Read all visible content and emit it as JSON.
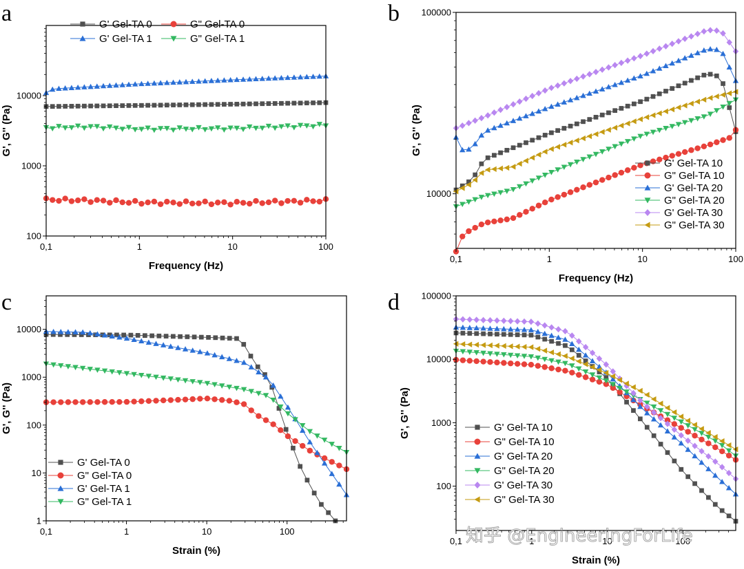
{
  "figure": {
    "colors": {
      "G' Gel-TA 0": "#505050",
      "G\" Gel-TA 0": "#e8413a",
      "G' Gel-TA 1": "#2a6fd6",
      "G\" Gel-TA 1": "#33b861",
      "G' Gel-TA 10": "#505050",
      "G\" Gel-TA 10": "#e8413a",
      "G' Gel-TA 20": "#2a6fd6",
      "G\" Gel-TA 20": "#33b861",
      "G' Gel-TA 30": "#b987f0",
      "G\" Gel-TA 30": "#c59b12"
    },
    "watermark": "知乎 @EngineeringForLife"
  },
  "chart_data": [
    {
      "id": "a",
      "panel_label": "a",
      "type": "scatter-line",
      "xlabel": "Frequency (Hz)",
      "ylabel": "G', G'' (Pa)",
      "xscale": "log",
      "yscale": "log",
      "xlim": [
        0.1,
        100
      ],
      "ylim": [
        100,
        100000
      ],
      "xticks": [
        {
          "v": 0.1,
          "t": "0,1"
        },
        {
          "v": 1,
          "t": "1"
        },
        {
          "v": 10,
          "t": "10"
        },
        {
          "v": 100,
          "t": "100"
        }
      ],
      "yticks": [
        {
          "v": 100,
          "t": "100"
        },
        {
          "v": 1000,
          "t": "1000"
        },
        {
          "v": 10000,
          "t": "10000"
        }
      ],
      "legend_pos": "top-two-column",
      "series": [
        {
          "name": "G' Gel-TA 0",
          "marker": "square",
          "x0": 0.1,
          "x1": 100,
          "n": 45,
          "anchors": [
            [
              0.1,
              7000
            ],
            [
              1,
              7250
            ],
            [
              10,
              7550
            ],
            [
              100,
              7950
            ]
          ]
        },
        {
          "name": "G\" Gel-TA 0",
          "marker": "circle",
          "x0": 0.1,
          "x1": 100,
          "n": 45,
          "anchors": [
            [
              0.1,
              330
            ],
            [
              0.3,
              320
            ],
            [
              1,
              300
            ],
            [
              10,
              295
            ],
            [
              100,
              320
            ]
          ],
          "jitter": 0.05
        },
        {
          "name": "G' Gel-TA 1",
          "marker": "triangle-up",
          "x0": 0.1,
          "x1": 100,
          "n": 45,
          "anchors": [
            [
              0.1,
              11000
            ],
            [
              0.12,
              12500
            ],
            [
              1,
              14700
            ],
            [
              10,
              16800
            ],
            [
              100,
              19000
            ]
          ]
        },
        {
          "name": "G\" Gel-TA 1",
          "marker": "triangle-down",
          "x0": 0.1,
          "x1": 100,
          "n": 45,
          "anchors": [
            [
              0.1,
              3500
            ],
            [
              0.3,
              3600
            ],
            [
              1,
              3350
            ],
            [
              10,
              3400
            ],
            [
              100,
              3800
            ]
          ],
          "jitter": 0.04
        }
      ]
    },
    {
      "id": "b",
      "panel_label": "b",
      "type": "scatter-line",
      "xlabel": "Frequency (Hz)",
      "ylabel": "G', G'' (Pa)",
      "xscale": "log",
      "yscale": "log",
      "xlim": [
        0.1,
        100
      ],
      "ylim": [
        5000,
        100000
      ],
      "xticks": [
        {
          "v": 0.1,
          "t": "0,1"
        },
        {
          "v": 1,
          "t": "1"
        },
        {
          "v": 10,
          "t": "10"
        },
        {
          "v": 100,
          "t": "100"
        }
      ],
      "yticks": [
        {
          "v": 10000,
          "t": "10000"
        },
        {
          "v": 100000,
          "t": "100000"
        }
      ],
      "legend_pos": "bottom-right",
      "series": [
        {
          "name": "G' Gel-TA 10",
          "marker": "square",
          "x0": 0.1,
          "x1": 100,
          "n": 45,
          "anchors": [
            [
              0.1,
              10500
            ],
            [
              0.15,
              12000
            ],
            [
              0.2,
              15500
            ],
            [
              1,
              21500
            ],
            [
              10,
              32500
            ],
            [
              50,
              46000
            ],
            [
              70,
              44000
            ],
            [
              100,
              22000
            ]
          ]
        },
        {
          "name": "G\" Gel-TA 10",
          "marker": "circle",
          "x0": 0.1,
          "x1": 100,
          "n": 45,
          "anchors": [
            [
              0.1,
              4800
            ],
            [
              0.12,
              6000
            ],
            [
              0.2,
              6900
            ],
            [
              0.4,
              7300
            ],
            [
              1,
              9200
            ],
            [
              10,
              14500
            ],
            [
              50,
              18500
            ],
            [
              90,
              20500
            ],
            [
              100,
              22500
            ]
          ]
        },
        {
          "name": "G' Gel-TA 20",
          "marker": "triangle-up",
          "x0": 0.1,
          "x1": 100,
          "n": 45,
          "anchors": [
            [
              0.1,
              20500
            ],
            [
              0.12,
              17000
            ],
            [
              0.15,
              18000
            ],
            [
              0.2,
              22000
            ],
            [
              1,
              30000
            ],
            [
              10,
              45000
            ],
            [
              50,
              63000
            ],
            [
              70,
              62000
            ],
            [
              100,
              42000
            ]
          ]
        },
        {
          "name": "G\" Gel-TA 20",
          "marker": "triangle-down",
          "x0": 0.1,
          "x1": 100,
          "n": 45,
          "anchors": [
            [
              0.1,
              8500
            ],
            [
              0.2,
              9700
            ],
            [
              0.4,
              10500
            ],
            [
              1,
              13000
            ],
            [
              10,
              21000
            ],
            [
              50,
              27000
            ],
            [
              100,
              33000
            ]
          ]
        },
        {
          "name": "G' Gel-TA 30",
          "marker": "diamond",
          "x0": 0.1,
          "x1": 100,
          "n": 45,
          "anchors": [
            [
              0.1,
              23000
            ],
            [
              0.2,
              26500
            ],
            [
              1,
              38000
            ],
            [
              10,
              58000
            ],
            [
              50,
              80000
            ],
            [
              70,
              79000
            ],
            [
              100,
              61000
            ]
          ]
        },
        {
          "name": "G\" Gel-TA 30",
          "marker": "triangle-left",
          "x0": 0.1,
          "x1": 100,
          "n": 45,
          "anchors": [
            [
              0.1,
              10300
            ],
            [
              0.15,
              11500
            ],
            [
              0.2,
              13500
            ],
            [
              0.4,
              14000
            ],
            [
              1,
              17500
            ],
            [
              10,
              26000
            ],
            [
              50,
              33500
            ],
            [
              100,
              36500
            ]
          ]
        }
      ]
    },
    {
      "id": "c",
      "panel_label": "c",
      "type": "scatter-line",
      "xlabel": "Strain (%)",
      "ylabel": "G', G'' (Pa)",
      "xscale": "log",
      "yscale": "log",
      "xlim": [
        0.1,
        550
      ],
      "ylim": [
        1,
        50000
      ],
      "xticks": [
        {
          "v": 0.1,
          "t": "0,1"
        },
        {
          "v": 1,
          "t": "1"
        },
        {
          "v": 10,
          "t": "10"
        },
        {
          "v": 100,
          "t": "100"
        }
      ],
      "yticks": [
        {
          "v": 1,
          "t": "1"
        },
        {
          "v": 10,
          "t": "10"
        },
        {
          "v": 100,
          "t": "100"
        },
        {
          "v": 1000,
          "t": "1000"
        },
        {
          "v": 10000,
          "t": "10000"
        }
      ],
      "legend_pos": "bottom-left",
      "series": [
        {
          "name": "G' Gel-TA 0",
          "marker": "square",
          "x0": 0.1,
          "x1": 400,
          "n": 42,
          "anchors": [
            [
              0.1,
              7800
            ],
            [
              1,
              7600
            ],
            [
              10,
              6800
            ],
            [
              25,
              6400
            ],
            [
              30,
              4500
            ],
            [
              40,
              1900
            ],
            [
              60,
              900
            ],
            [
              100,
              70
            ],
            [
              150,
              12
            ],
            [
              250,
              2.5
            ],
            [
              400,
              1
            ]
          ]
        },
        {
          "name": "G\" Gel-TA 0",
          "marker": "circle",
          "x0": 0.1,
          "x1": 550,
          "n": 42,
          "anchors": [
            [
              0.1,
              300
            ],
            [
              1,
              305
            ],
            [
              5,
              340
            ],
            [
              10,
              360
            ],
            [
              20,
              320
            ],
            [
              30,
              270
            ],
            [
              40,
              170
            ],
            [
              70,
              100
            ],
            [
              100,
              60
            ],
            [
              200,
              28
            ],
            [
              550,
              12
            ]
          ]
        },
        {
          "name": "G' Gel-TA 1",
          "marker": "triangle-up",
          "x0": 0.1,
          "x1": 550,
          "n": 42,
          "anchors": [
            [
              0.1,
              9000
            ],
            [
              0.3,
              8700
            ],
            [
              1,
              6500
            ],
            [
              10,
              3200
            ],
            [
              30,
              2000
            ],
            [
              60,
              900
            ],
            [
              100,
              250
            ],
            [
              200,
              40
            ],
            [
              550,
              3.5
            ]
          ]
        },
        {
          "name": "G\" Gel-TA 1",
          "marker": "triangle-down",
          "x0": 0.1,
          "x1": 550,
          "n": 42,
          "anchors": [
            [
              0.1,
              1900
            ],
            [
              1,
              1200
            ],
            [
              10,
              750
            ],
            [
              30,
              550
            ],
            [
              60,
              400
            ],
            [
              100,
              180
            ],
            [
              200,
              70
            ],
            [
              550,
              27
            ]
          ]
        }
      ]
    },
    {
      "id": "d",
      "panel_label": "d",
      "type": "scatter-line",
      "xlabel": "Strain (%)",
      "ylabel": "G', G'' (Pa)",
      "xscale": "log",
      "yscale": "log",
      "xlim": [
        0.1,
        500
      ],
      "ylim": [
        20,
        100000
      ],
      "xticks": [
        {
          "v": 0.1,
          "t": "0,1"
        },
        {
          "v": 1,
          "t": "1"
        },
        {
          "v": 10,
          "t": "10"
        },
        {
          "v": 100,
          "t": "100"
        }
      ],
      "yticks": [
        {
          "v": 100,
          "t": "100"
        },
        {
          "v": 1000,
          "t": "1000"
        },
        {
          "v": 10000,
          "t": "10000"
        },
        {
          "v": 100000,
          "t": "100000"
        }
      ],
      "legend_pos": "bottom-left",
      "series": [
        {
          "name": "G' Gel-TA 10",
          "marker": "square",
          "x0": 0.1,
          "x1": 500,
          "n": 42,
          "anchors": [
            [
              0.1,
              26000
            ],
            [
              1,
              24000
            ],
            [
              3,
              16000
            ],
            [
              10,
              5000
            ],
            [
              30,
              1000
            ],
            [
              100,
              170
            ],
            [
              300,
              45
            ],
            [
              500,
              28
            ]
          ]
        },
        {
          "name": "G\" Gel-TA 10",
          "marker": "circle",
          "x0": 0.1,
          "x1": 500,
          "n": 42,
          "anchors": [
            [
              0.1,
              9800
            ],
            [
              1,
              8200
            ],
            [
              3,
              6500
            ],
            [
              10,
              4000
            ],
            [
              30,
              1800
            ],
            [
              100,
              800
            ],
            [
              300,
              380
            ],
            [
              500,
              260
            ]
          ]
        },
        {
          "name": "G' Gel-TA 20",
          "marker": "triangle-up",
          "x0": 0.1,
          "x1": 500,
          "n": 42,
          "anchors": [
            [
              0.1,
              32000
            ],
            [
              1,
              29000
            ],
            [
              3,
              20000
            ],
            [
              10,
              6000
            ],
            [
              30,
              1600
            ],
            [
              100,
              450
            ],
            [
              300,
              130
            ],
            [
              500,
              75
            ]
          ]
        },
        {
          "name": "G\" Gel-TA 20",
          "marker": "triangle-down",
          "x0": 0.1,
          "x1": 500,
          "n": 42,
          "anchors": [
            [
              0.1,
              13500
            ],
            [
              1,
              11000
            ],
            [
              3,
              8500
            ],
            [
              10,
              4500
            ],
            [
              30,
              2200
            ],
            [
              100,
              1000
            ],
            [
              300,
              480
            ],
            [
              500,
              300
            ]
          ]
        },
        {
          "name": "G' Gel-TA 30",
          "marker": "diamond",
          "x0": 0.1,
          "x1": 500,
          "n": 42,
          "anchors": [
            [
              0.1,
              43000
            ],
            [
              1,
              39000
            ],
            [
              3,
              27000
            ],
            [
              10,
              8000
            ],
            [
              30,
              2000
            ],
            [
              100,
              600
            ],
            [
              300,
              220
            ],
            [
              500,
              130
            ]
          ]
        },
        {
          "name": "G\" Gel-TA 30",
          "marker": "triangle-left",
          "x0": 0.1,
          "x1": 500,
          "n": 42,
          "anchors": [
            [
              0.1,
              17500
            ],
            [
              1,
              15500
            ],
            [
              3,
              11000
            ],
            [
              10,
              6000
            ],
            [
              30,
              3000
            ],
            [
              100,
              1200
            ],
            [
              300,
              550
            ],
            [
              500,
              380
            ]
          ]
        }
      ]
    }
  ]
}
